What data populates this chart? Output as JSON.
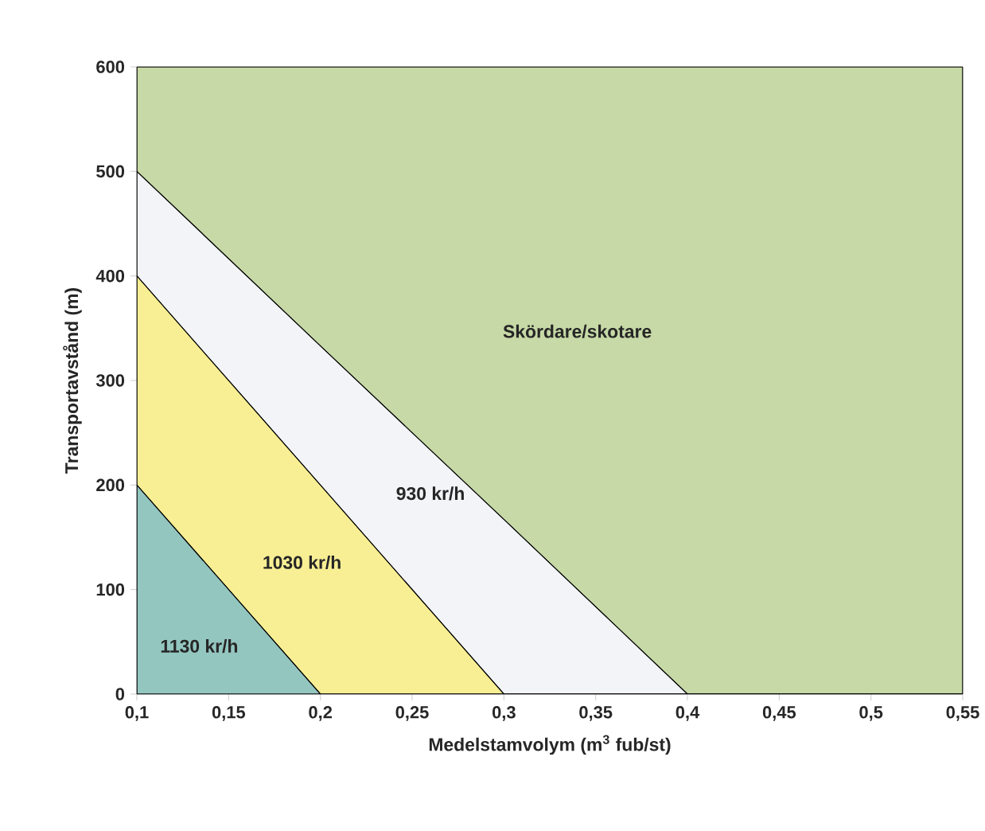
{
  "chart_data": {
    "type": "area",
    "stacked": true,
    "xlabel": "Medelstamvolym (m$^{3}$ fub/st)",
    "ylabel": "Transportavstånd (m)",
    "xlim": [
      0.1,
      0.55
    ],
    "ylim": [
      0,
      600
    ],
    "xticks": [
      {
        "value": 0.1,
        "label": "0,1"
      },
      {
        "value": 0.15,
        "label": "0,15"
      },
      {
        "value": 0.2,
        "label": "0,2"
      },
      {
        "value": 0.25,
        "label": "0,25"
      },
      {
        "value": 0.3,
        "label": "0,3"
      },
      {
        "value": 0.35,
        "label": "0,35"
      },
      {
        "value": 0.4,
        "label": "0,4"
      },
      {
        "value": 0.45,
        "label": "0,45"
      },
      {
        "value": 0.5,
        "label": "0,5"
      },
      {
        "value": 0.55,
        "label": "0,55"
      }
    ],
    "yticks": [
      0,
      100,
      200,
      300,
      400,
      500,
      600
    ],
    "grid": false,
    "legend": false,
    "marker": "none",
    "x": [
      0.1,
      0.2,
      0.3,
      0.4,
      0.55
    ],
    "series": [
      {
        "name": "1130 kr/h",
        "color": "#94c6c0",
        "values": [
          200,
          0,
          0,
          0,
          0
        ]
      },
      {
        "name": "1030 kr/h",
        "color": "#f8ef94",
        "values": [
          200,
          200,
          0,
          0,
          0
        ]
      },
      {
        "name": "930 kr/h",
        "color": "#f3f4f8",
        "values": [
          100,
          133,
          167,
          0,
          0
        ]
      },
      {
        "name": "Skördare/skotare",
        "color": "#c6d9a6",
        "values": [
          100,
          267,
          433,
          600,
          600
        ]
      }
    ]
  }
}
